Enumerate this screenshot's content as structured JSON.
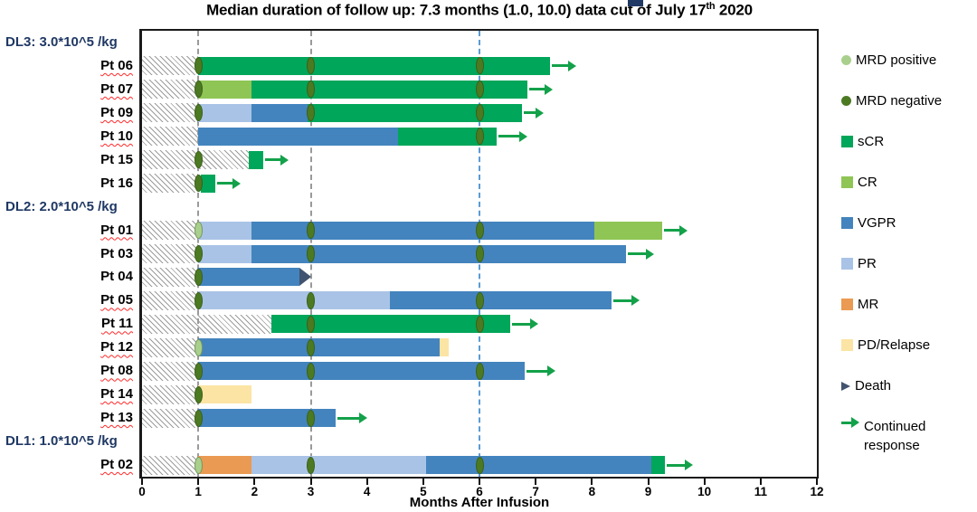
{
  "title": {
    "main": "Median duration of follow up: 7.3 months (1.0, 10.0) data cut of July 17",
    "sup": "th",
    "tail": " 2020"
  },
  "colors": {
    "MRD positive": "#A9CF8C",
    "MRD negative": "#4C7A22",
    "sCR": "#00A65A",
    "CR": "#8FC555",
    "VGPR": "#4384BE",
    "PR": "#A9C3E6",
    "MR": "#EA9A52",
    "PD/Relapse": "#FBE4A4",
    "Death": "#41536E",
    "Continued response": "#13A14A",
    "navy": "#1F3864",
    "gridline_gray": "#9A9A9A",
    "gridline_blue": "#5B9BD5",
    "squiggle_red": "#FF2A2A"
  },
  "legend": {
    "items": [
      {
        "label": "MRD positive",
        "swatch": "circle",
        "color": "#A9CF8C"
      },
      {
        "label": "MRD negative",
        "swatch": "circle",
        "color": "#4C7A22"
      },
      {
        "label": "sCR",
        "swatch": "square",
        "color": "#00A65A"
      },
      {
        "label": "CR",
        "swatch": "square",
        "color": "#8FC555"
      },
      {
        "label": "VGPR",
        "swatch": "square",
        "color": "#4384BE"
      },
      {
        "label": "PR",
        "swatch": "square",
        "color": "#A9C3E6"
      },
      {
        "label": "MR",
        "swatch": "square",
        "color": "#EA9A52"
      },
      {
        "label": "PD/Relapse",
        "swatch": "square",
        "color": "#FBE4A4"
      },
      {
        "label": "Death",
        "swatch": "triangle",
        "color": "#41536E"
      },
      {
        "label": "Continued response",
        "swatch": "arrow",
        "color": "#13A14A",
        "multiline": true
      }
    ]
  },
  "chart_data": {
    "type": "swimmer",
    "title": "Median duration of follow up: 7.3 months (1.0, 10.0) data cut of July 17th 2020",
    "xlabel": "Months After Infusion",
    "xlim": [
      0,
      12
    ],
    "xticks": [
      0,
      1,
      2,
      3,
      4,
      5,
      6,
      7,
      8,
      9,
      10,
      11,
      12
    ],
    "units": "months",
    "legend_position": "right",
    "reference_lines": [
      {
        "x": 1,
        "style": "dashed",
        "color": "#9A9A9A"
      },
      {
        "x": 3,
        "style": "dashed",
        "color": "#9A9A9A"
      },
      {
        "x": 6,
        "style": "dashed",
        "color": "#5B9BD5"
      }
    ],
    "groups": [
      {
        "label": "DL3: 3.0*10^5 /kg",
        "patients": [
          {
            "id": "Pt 06",
            "squiggle": true,
            "hatch": [
              0,
              1
            ],
            "segments": [
              [
                "sCR",
                1,
                7.25
              ]
            ],
            "markers": [
              [
                "MRD negative",
                1
              ],
              [
                "MRD negative",
                3
              ],
              [
                "MRD negative",
                6
              ]
            ],
            "end": "arrow",
            "arrow_to": 7.72
          },
          {
            "id": "Pt 07",
            "squiggle": true,
            "hatch": [
              0,
              1
            ],
            "segments": [
              [
                "CR",
                1,
                1.95
              ],
              [
                "sCR",
                1.95,
                6.85
              ]
            ],
            "markers": [
              [
                "MRD negative",
                1
              ],
              [
                "MRD negative",
                3
              ],
              [
                "MRD negative",
                6
              ]
            ],
            "end": "arrow",
            "arrow_to": 7.3
          },
          {
            "id": "Pt 09",
            "squiggle": true,
            "hatch": [
              0,
              1
            ],
            "segments": [
              [
                "PR",
                1,
                1.95
              ],
              [
                "VGPR",
                1.95,
                2.95
              ],
              [
                "sCR",
                2.95,
                6.75
              ]
            ],
            "markers": [
              [
                "MRD negative",
                1
              ],
              [
                "MRD negative",
                3
              ],
              [
                "MRD negative",
                6
              ]
            ],
            "end": "arrow",
            "arrow_to": 7.15
          },
          {
            "id": "Pt 10",
            "squiggle": true,
            "hatch": [
              0,
              1
            ],
            "segments": [
              [
                "VGPR",
                1,
                4.55
              ],
              [
                "sCR",
                4.55,
                6.3
              ]
            ],
            "markers": [
              [
                "MRD negative",
                6
              ]
            ],
            "end": "arrow",
            "arrow_to": 6.85
          },
          {
            "id": "Pt 15",
            "squiggle": false,
            "hatch": [
              0,
              1.9
            ],
            "segments": [
              [
                "sCR",
                1.9,
                2.15
              ]
            ],
            "markers": [
              [
                "MRD negative",
                1
              ]
            ],
            "end": "arrow",
            "arrow_to": 2.6
          },
          {
            "id": "Pt 16",
            "squiggle": false,
            "hatch": [
              0,
              1
            ],
            "segments": [
              [
                "sCR",
                1.05,
                1.3
              ]
            ],
            "markers": [
              [
                "MRD negative",
                1
              ]
            ],
            "end": "arrow",
            "arrow_to": 1.75
          }
        ]
      },
      {
        "label": "DL2: 2.0*10^5 /kg",
        "patients": [
          {
            "id": "Pt 01",
            "squiggle": true,
            "hatch": [
              0,
              1
            ],
            "segments": [
              [
                "PR",
                1,
                1.95
              ],
              [
                "VGPR",
                1.95,
                8.05
              ],
              [
                "CR",
                8.05,
                9.25
              ]
            ],
            "markers": [
              [
                "MRD positive",
                1
              ],
              [
                "MRD negative",
                3
              ],
              [
                "MRD negative",
                6
              ]
            ],
            "end": "arrow",
            "arrow_to": 9.7
          },
          {
            "id": "Pt 03",
            "squiggle": false,
            "hatch": [
              0,
              1
            ],
            "segments": [
              [
                "PR",
                1,
                1.95
              ],
              [
                "VGPR",
                1.95,
                8.6
              ]
            ],
            "markers": [
              [
                "MRD negative",
                1
              ],
              [
                "MRD negative",
                3
              ],
              [
                "MRD negative",
                6
              ]
            ],
            "end": "arrow",
            "arrow_to": 9.1
          },
          {
            "id": "Pt 04",
            "squiggle": false,
            "hatch": [
              0,
              1
            ],
            "segments": [
              [
                "VGPR",
                1,
                2.8
              ]
            ],
            "markers": [
              [
                "MRD negative",
                1
              ]
            ],
            "end": "death",
            "death_at": 2.8
          },
          {
            "id": "Pt 05",
            "squiggle": true,
            "hatch": [
              0,
              1
            ],
            "segments": [
              [
                "PR",
                1,
                4.4
              ],
              [
                "VGPR",
                4.4,
                8.35
              ]
            ],
            "markers": [
              [
                "MRD negative",
                1
              ],
              [
                "MRD negative",
                3
              ],
              [
                "MRD negative",
                6
              ]
            ],
            "end": "arrow",
            "arrow_to": 8.85
          },
          {
            "id": "Pt 11",
            "squiggle": true,
            "hatch": [
              0,
              2.3
            ],
            "segments": [
              [
                "sCR",
                2.3,
                6.55
              ]
            ],
            "markers": [
              [
                "MRD negative",
                3
              ],
              [
                "MRD negative",
                6
              ]
            ],
            "end": "arrow",
            "arrow_to": 7.05
          },
          {
            "id": "Pt 12",
            "squiggle": true,
            "hatch": [
              0,
              1
            ],
            "segments": [
              [
                "VGPR",
                1,
                5.3
              ],
              [
                "PD/Relapse",
                5.3,
                5.45
              ]
            ],
            "markers": [
              [
                "MRD positive",
                1
              ],
              [
                "MRD negative",
                3
              ]
            ],
            "end": "none"
          },
          {
            "id": "Pt 08",
            "squiggle": true,
            "hatch": [
              0,
              1
            ],
            "segments": [
              [
                "VGPR",
                1,
                6.8
              ]
            ],
            "markers": [
              [
                "MRD negative",
                1
              ],
              [
                "MRD negative",
                3
              ],
              [
                "MRD negative",
                6
              ]
            ],
            "end": "arrow",
            "arrow_to": 7.35
          },
          {
            "id": "Pt 14",
            "squiggle": true,
            "hatch": [
              0,
              1
            ],
            "segments": [
              [
                "PD/Relapse",
                1,
                1.95
              ]
            ],
            "markers": [
              [
                "MRD negative",
                1
              ]
            ],
            "end": "none"
          },
          {
            "id": "Pt 13",
            "squiggle": true,
            "hatch": [
              0,
              1
            ],
            "segments": [
              [
                "VGPR",
                1,
                3.45
              ]
            ],
            "markers": [
              [
                "MRD negative",
                1
              ],
              [
                "MRD negative",
                3
              ]
            ],
            "end": "arrow",
            "arrow_to": 4.0
          }
        ]
      },
      {
        "label": "DL1: 1.0*10^5 /kg",
        "patients": [
          {
            "id": "Pt 02",
            "squiggle": true,
            "hatch": [
              0,
              1
            ],
            "segments": [
              [
                "MR",
                1,
                1.95
              ],
              [
                "PR",
                1.95,
                5.05
              ],
              [
                "VGPR",
                5.05,
                9.05
              ],
              [
                "sCR",
                9.05,
                9.3
              ]
            ],
            "markers": [
              [
                "MRD positive",
                1
              ],
              [
                "MRD negative",
                3
              ],
              [
                "MRD negative",
                6
              ]
            ],
            "end": "arrow",
            "arrow_to": 9.8
          }
        ]
      }
    ]
  }
}
